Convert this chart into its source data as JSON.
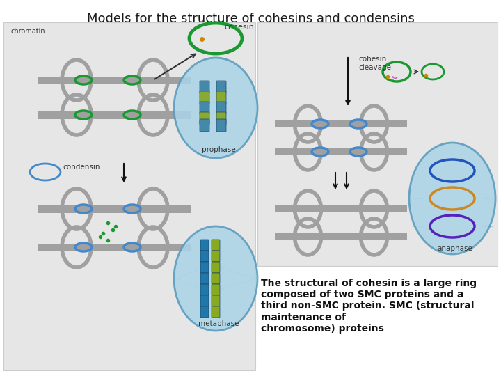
{
  "title": "Models for the structure of cohesins and condensins",
  "title_fontsize": 13,
  "title_color": "#1a1a1a",
  "bg_color": "#ffffff",
  "left_panel_bg": "#e6e6e6",
  "right_panel_bg": "#e6e6e6",
  "gray_color": "#a0a0a0",
  "green_color": "#1a9932",
  "blue_color": "#4488cc",
  "light_blue": "#aad4e8",
  "circle_edge": "#5599bb",
  "desc_text": "The structural of cohesin is a large ring\ncomposed of two SMC proteins and a\nthird non-SMC protein. SMC (structural\nmaintenance of\nchromosome) proteins",
  "desc_fontsize": 10,
  "labels": {
    "chromatin": "chromatin",
    "cohesin": "cohesin",
    "prophase": "prophase",
    "condensin": "condensin",
    "metaphase": "metaphase",
    "cohesin_cleavage": "cohesin\ncleavage",
    "anaphase": "anaphase"
  }
}
